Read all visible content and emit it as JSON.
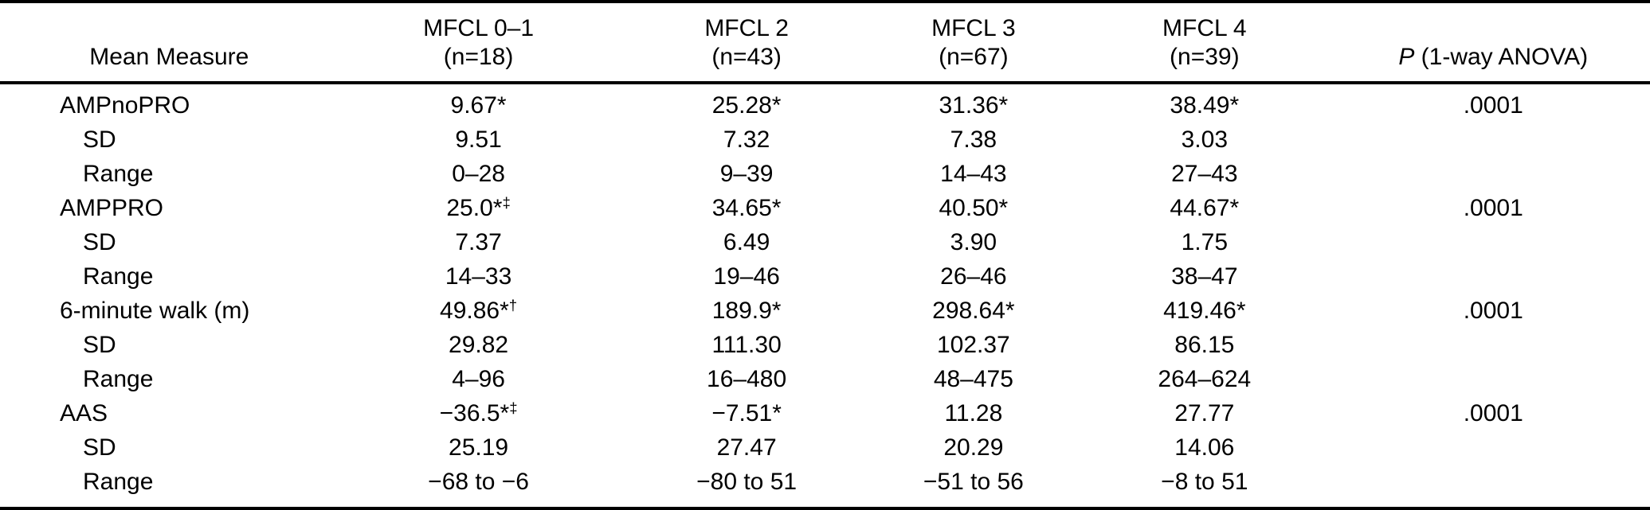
{
  "colors": {
    "text": "#000000",
    "background": "#ffffff",
    "rule": "#000000"
  },
  "table": {
    "columns": [
      {
        "label": "Mean Measure",
        "sub": ""
      },
      {
        "label": "MFCL 0–1",
        "sub": "(n=18)"
      },
      {
        "label": "MFCL 2",
        "sub": "(n=43)"
      },
      {
        "label": "MFCL 3",
        "sub": "(n=67)"
      },
      {
        "label": "MFCL 4",
        "sub": "(n=39)"
      }
    ],
    "p_header": {
      "italic": "P",
      "rest": " (1-way ANOVA)"
    },
    "rows": [
      {
        "measure": "AMPnoPRO",
        "indent": false,
        "values": [
          "9.67*",
          "25.28*",
          "31.36*",
          "38.49*"
        ],
        "p": ".0001"
      },
      {
        "measure": "SD",
        "indent": true,
        "values": [
          "9.51",
          "7.32",
          "7.38",
          "3.03"
        ],
        "p": ""
      },
      {
        "measure": "Range",
        "indent": true,
        "values": [
          "0–28",
          "9–39",
          "14–43",
          "27–43"
        ],
        "p": ""
      },
      {
        "measure": "AMPPRO",
        "indent": false,
        "values": [
          "25.0*‡",
          "34.65*",
          "40.50*",
          "44.67*"
        ],
        "p": ".0001"
      },
      {
        "measure": "SD",
        "indent": true,
        "values": [
          "7.37",
          "6.49",
          "3.90",
          "1.75"
        ],
        "p": ""
      },
      {
        "measure": "Range",
        "indent": true,
        "values": [
          "14–33",
          "19–46",
          "26–46",
          "38–47"
        ],
        "p": ""
      },
      {
        "measure": "6-minute walk (m)",
        "indent": false,
        "values": [
          "49.86*†",
          "189.9*",
          "298.64*",
          "419.46*"
        ],
        "p": ".0001"
      },
      {
        "measure": "SD",
        "indent": true,
        "values": [
          "29.82",
          "111.30",
          "102.37",
          "86.15"
        ],
        "p": ""
      },
      {
        "measure": "Range",
        "indent": true,
        "values": [
          "4–96",
          "16–480",
          "48–475",
          "264–624"
        ],
        "p": ""
      },
      {
        "measure": "AAS",
        "indent": false,
        "values": [
          "−36.5*‡",
          "−7.51*",
          "11.28",
          "27.77"
        ],
        "p": ".0001"
      },
      {
        "measure": "SD",
        "indent": true,
        "values": [
          "25.19",
          "27.47",
          "20.29",
          "14.06"
        ],
        "p": ""
      },
      {
        "measure": "Range",
        "indent": true,
        "values": [
          "−68 to −6",
          "−80 to 51",
          "−51 to 56",
          "−8 to 51"
        ],
        "p": ""
      }
    ]
  }
}
